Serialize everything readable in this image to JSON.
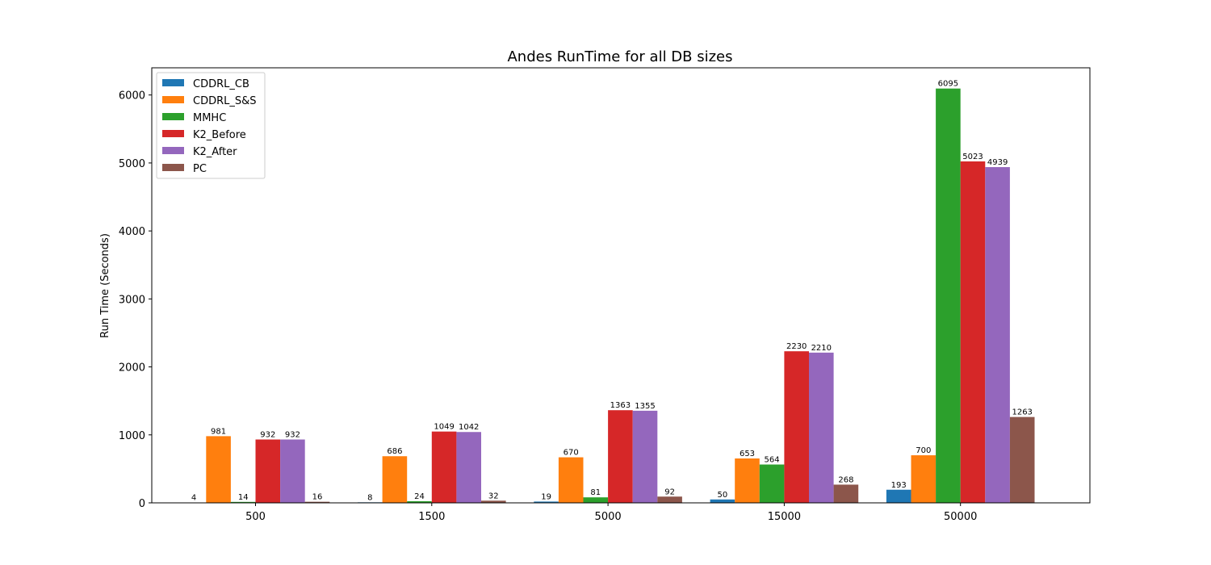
{
  "chart_data": {
    "type": "bar",
    "title": "Andes RunTime for all DB sizes",
    "xlabel": "",
    "ylabel": "Run Time (Seconds)",
    "categories": [
      "500",
      "1500",
      "5000",
      "15000",
      "50000"
    ],
    "ylim": [
      0,
      6400
    ],
    "yticks": [
      0,
      1000,
      2000,
      3000,
      4000,
      5000,
      6000
    ],
    "grid": false,
    "legend_position": "top-left",
    "series": [
      {
        "name": "CDDRL_CB",
        "color": "#1f77b4",
        "values": [
          4,
          8,
          19,
          50,
          193
        ]
      },
      {
        "name": "CDDRL_S&S",
        "color": "#ff7f0e",
        "values": [
          981,
          686,
          670,
          653,
          700
        ]
      },
      {
        "name": "MMHC",
        "color": "#2ca02c",
        "values": [
          14,
          24,
          81,
          564,
          6095
        ]
      },
      {
        "name": "K2_Before",
        "color": "#d62728",
        "values": [
          932,
          1049,
          1363,
          2230,
          5023
        ]
      },
      {
        "name": "K2_After",
        "color": "#9467bd",
        "values": [
          932,
          1042,
          1355,
          2210,
          4939
        ]
      },
      {
        "name": "PC",
        "color": "#8c564b",
        "values": [
          16,
          32,
          92,
          268,
          1263
        ]
      }
    ]
  }
}
